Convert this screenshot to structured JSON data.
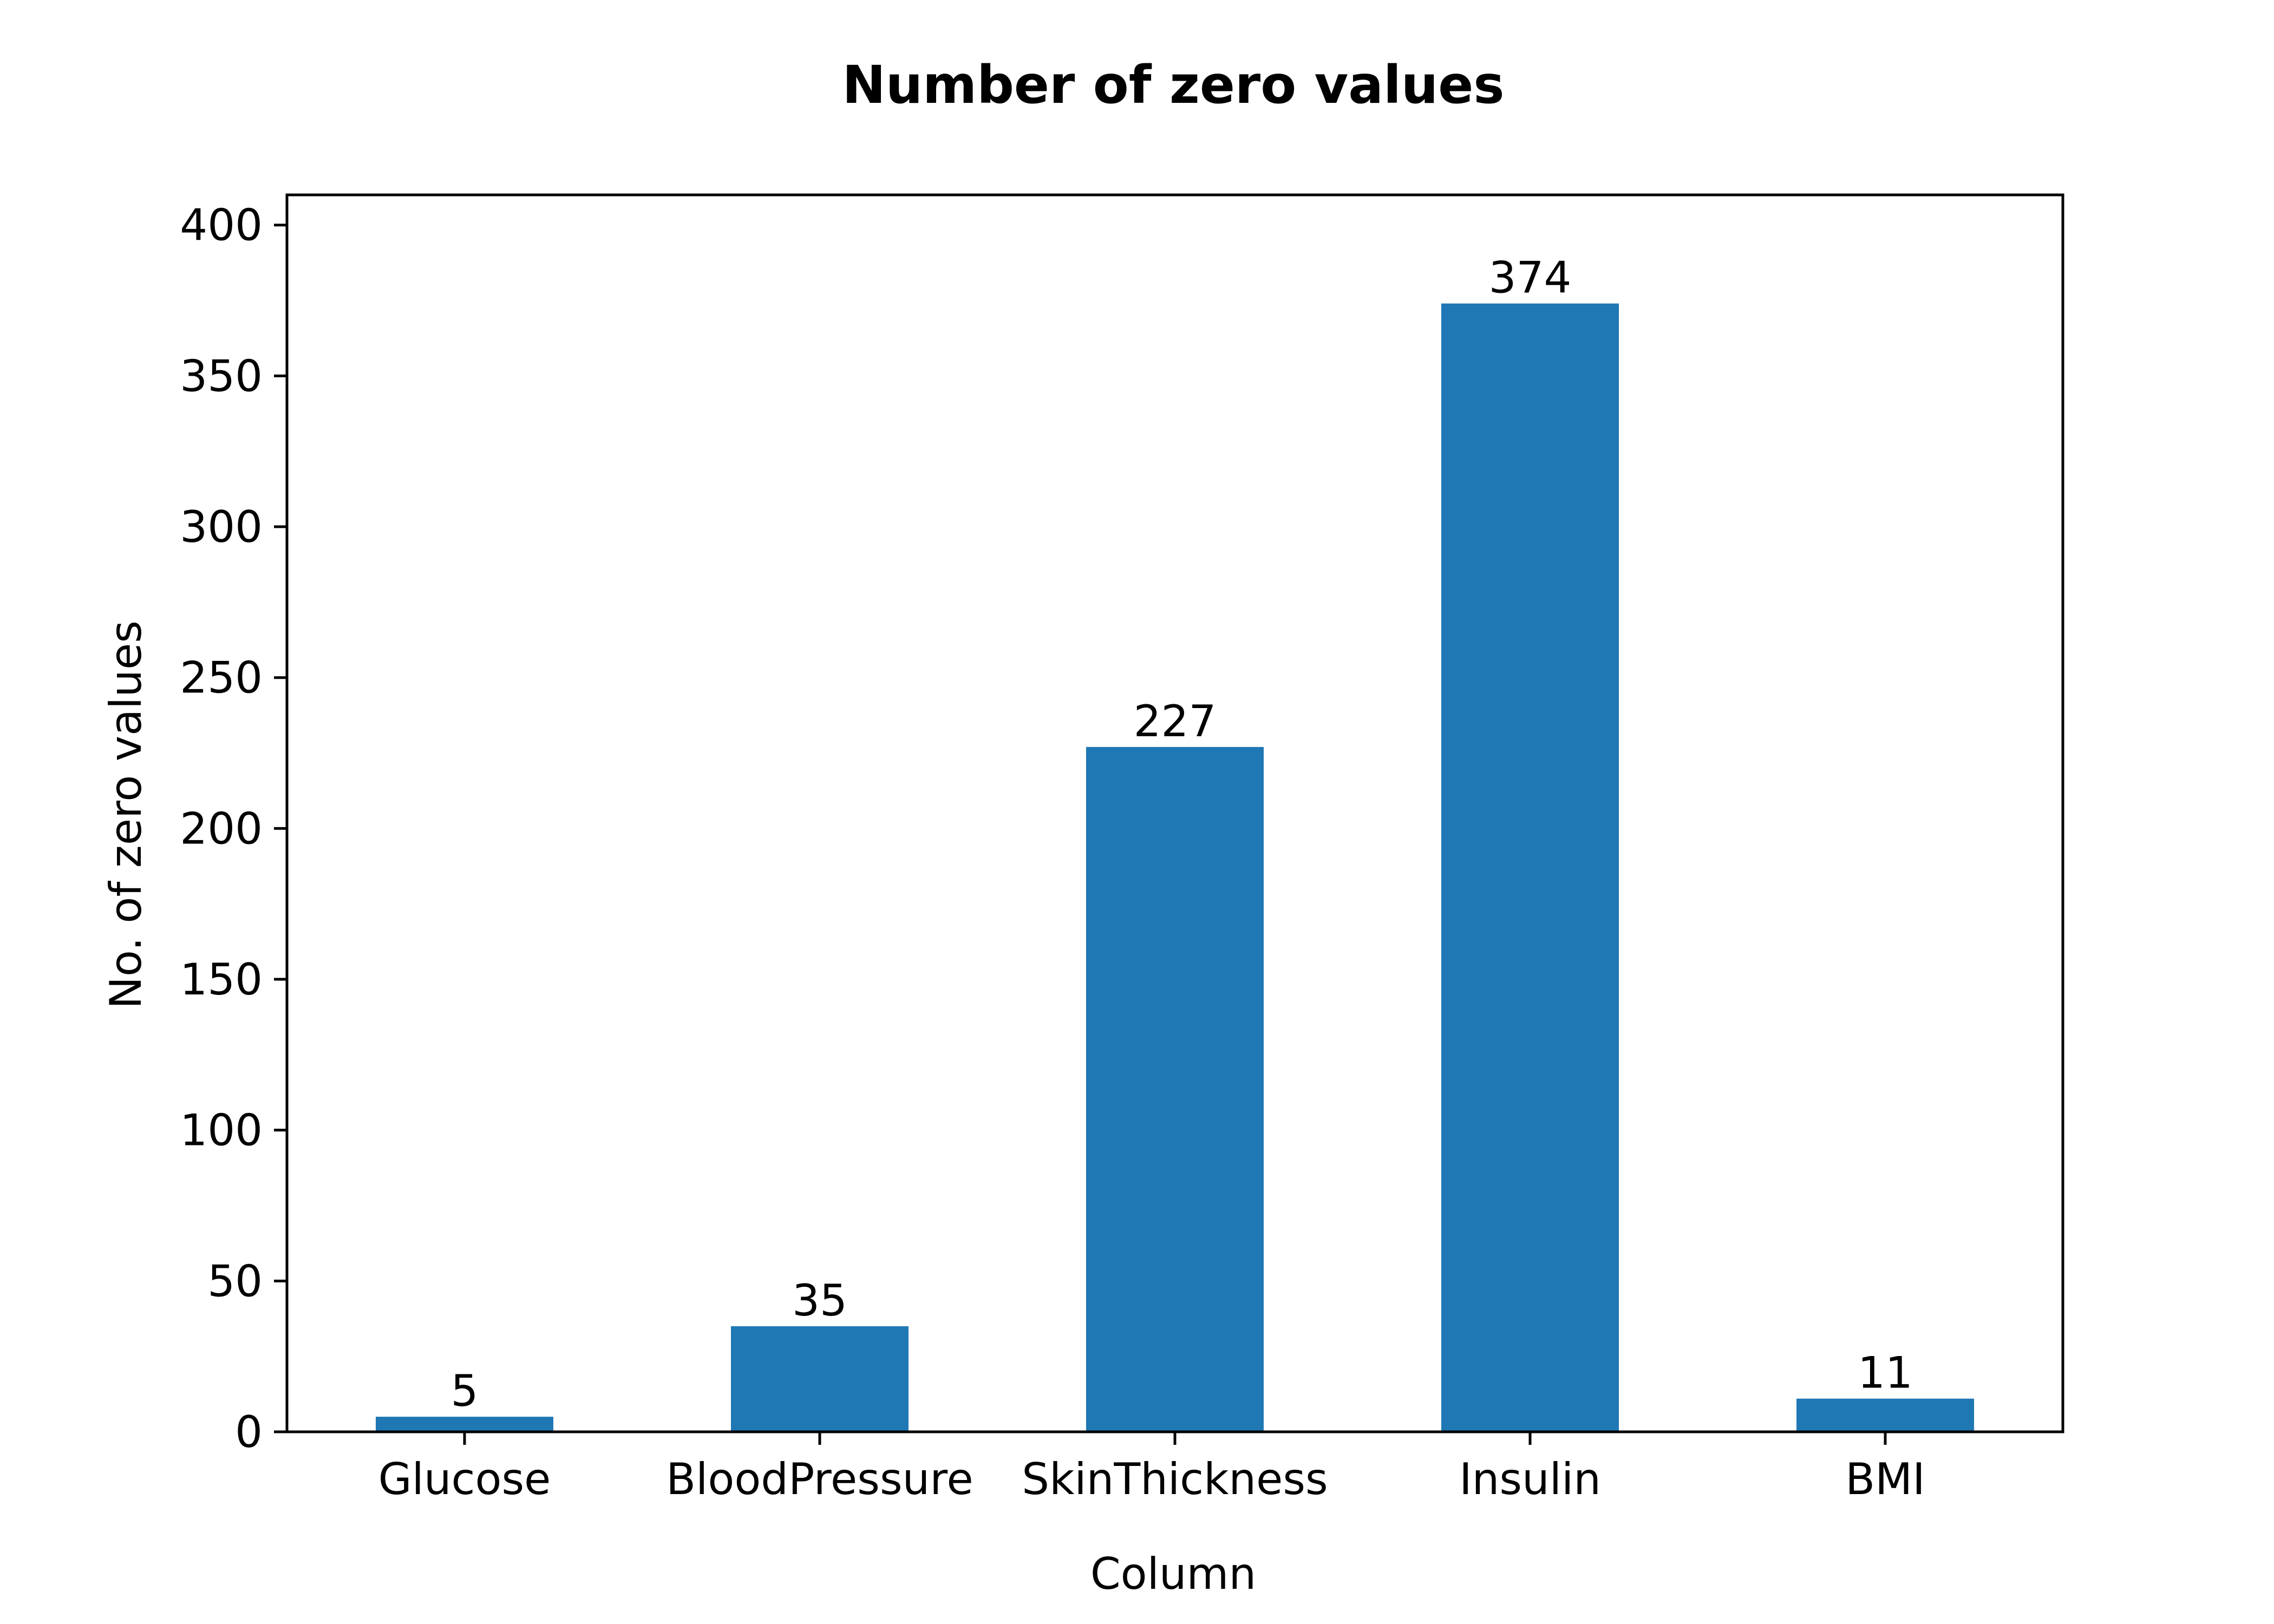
{
  "chart_data": {
    "type": "bar",
    "title": "Number of zero values",
    "xlabel": "Column",
    "ylabel": "No. of zero values",
    "categories": [
      "Glucose",
      "BloodPressure",
      "SkinThickness",
      "Insulin",
      "BMI"
    ],
    "values": [
      5,
      35,
      227,
      374,
      11
    ],
    "value_labels": [
      "5",
      "35",
      "227",
      "374",
      "11"
    ],
    "ylim": [
      0,
      410
    ],
    "yticks": [
      0,
      50,
      100,
      150,
      200,
      250,
      300,
      350,
      400
    ],
    "ytick_labels": [
      "0",
      "50",
      "100",
      "150",
      "200",
      "250",
      "300",
      "350",
      "400"
    ],
    "grid": false,
    "legend": "none",
    "bar_color": "#1f77b4"
  }
}
